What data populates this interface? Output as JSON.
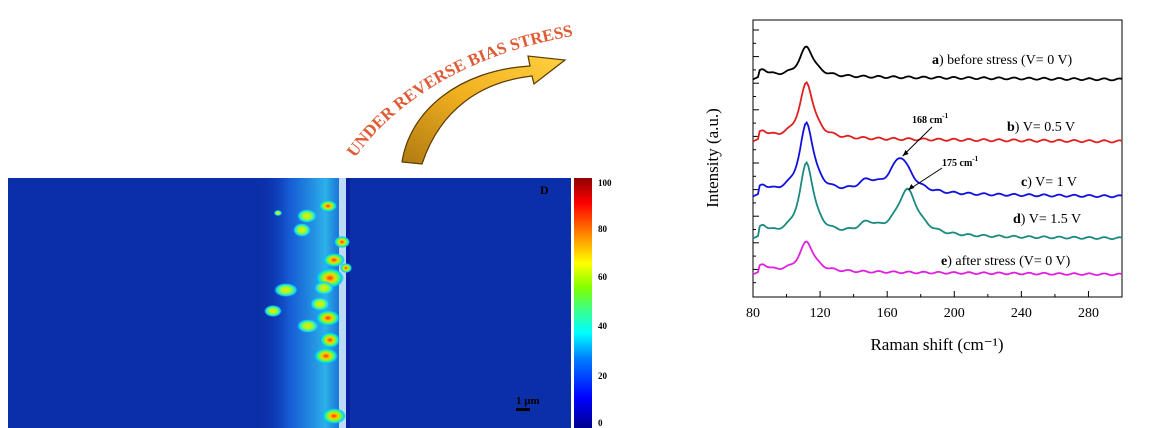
{
  "banner": {
    "text": "UNDER REVERSE BIAS STRESS",
    "color": "#e05a35"
  },
  "map": {
    "panel_letter": "D",
    "scale_bar": "1 μm",
    "colorbar_ticks": [
      "100",
      "80",
      "60",
      "40",
      "20",
      "0"
    ]
  },
  "chart_data": {
    "type": "line",
    "xlabel": "Raman shift (cm⁻¹)",
    "ylabel": "Intensity (a.u.)",
    "xlim": [
      80,
      300
    ],
    "xticks": [
      "80",
      "120",
      "160",
      "200",
      "240",
      "280"
    ],
    "y_ticks_labeled": false,
    "series": [
      {
        "name": "a) before stress (V= 0 V)",
        "tag": "a",
        "rest": ") before stress (V= 0 V)",
        "color": "#000000"
      },
      {
        "name": "b) V= 0.5 V",
        "tag": "b",
        "rest": ") V= 0.5 V",
        "color": "#e02020"
      },
      {
        "name": "c) V= 1 V",
        "tag": "c",
        "rest": ") V= 1 V",
        "color": "#1010e0"
      },
      {
        "name": "d) V= 1.5 V",
        "tag": "d",
        "rest": ") V= 1.5 V",
        "color": "#1a8a80"
      },
      {
        "name": "e) after stress (V= 0 V)",
        "tag": "e",
        "rest": ") after stress (V= 0 V)",
        "color": "#e020e0"
      }
    ],
    "annotations": [
      {
        "text": "168 cm",
        "sup": "-1",
        "x": 168
      },
      {
        "text": "175 cm",
        "sup": "-1",
        "x": 175
      }
    ]
  }
}
